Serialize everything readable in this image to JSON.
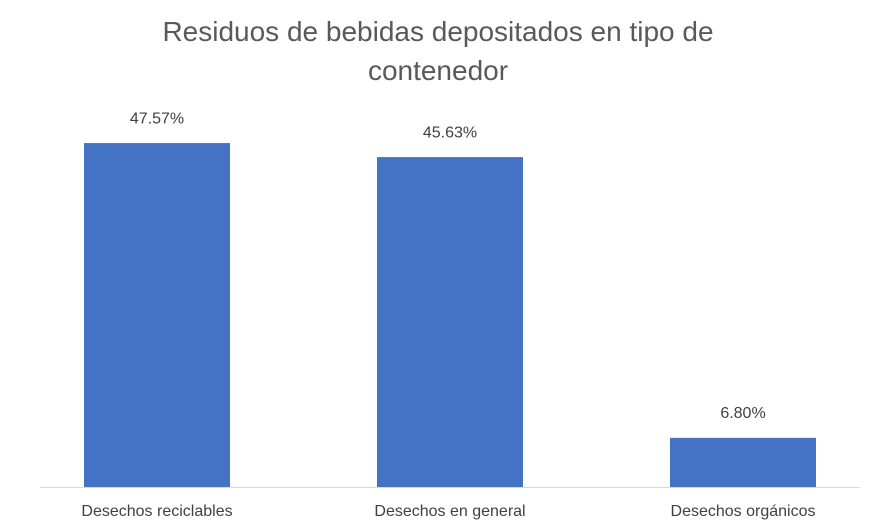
{
  "chart_data": {
    "type": "bar",
    "title": "Residuos de bebidas depositados en tipo de contenedor",
    "categories": [
      "Desechos reciclables",
      "Desechos en general",
      "Desechos orgánicos"
    ],
    "values": [
      47.57,
      45.63,
      6.8
    ],
    "value_labels": [
      "47.57%",
      "45.63%",
      "6.80%"
    ],
    "color": "#4472c4"
  }
}
